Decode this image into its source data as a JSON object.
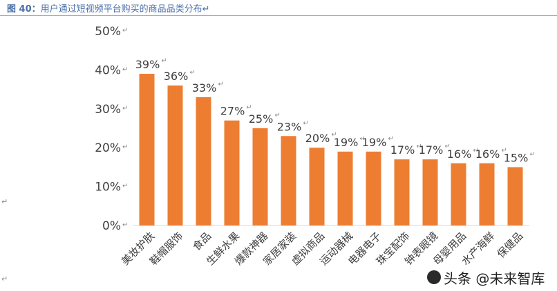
{
  "figure": {
    "title_prefix": "图 40：",
    "title_text": "用户通过短视频平台购买的商品品类分布",
    "return_mark": "↵"
  },
  "watermark": {
    "text": "头条 @未来智库"
  },
  "chart_data": {
    "type": "bar",
    "categories": [
      "美妆护肤",
      "鞋帽服饰",
      "食品",
      "生鲜水果",
      "爆款神器",
      "家居家装",
      "虚拟商品",
      "运动器械",
      "电器电子",
      "珠宝配饰",
      "钟表眼镜",
      "母婴用品",
      "水产海鲜",
      "保健品"
    ],
    "values": [
      39,
      36,
      33,
      27,
      25,
      23,
      20,
      19,
      19,
      17,
      17,
      16,
      16,
      15
    ],
    "data_labels": [
      "39%",
      "36%",
      "33%",
      "27%",
      "25%",
      "23%",
      "20%",
      "19%",
      "19%",
      "17%",
      "17%",
      "16%",
      "16%",
      "15%"
    ],
    "yticks": [
      "0%",
      "10%",
      "20%",
      "30%",
      "40%",
      "50%"
    ],
    "ylim": [
      0,
      50
    ],
    "bar_color": "#ed7d31",
    "grid": false,
    "legend": "none",
    "title": "",
    "xlabel": "",
    "ylabel": ""
  }
}
